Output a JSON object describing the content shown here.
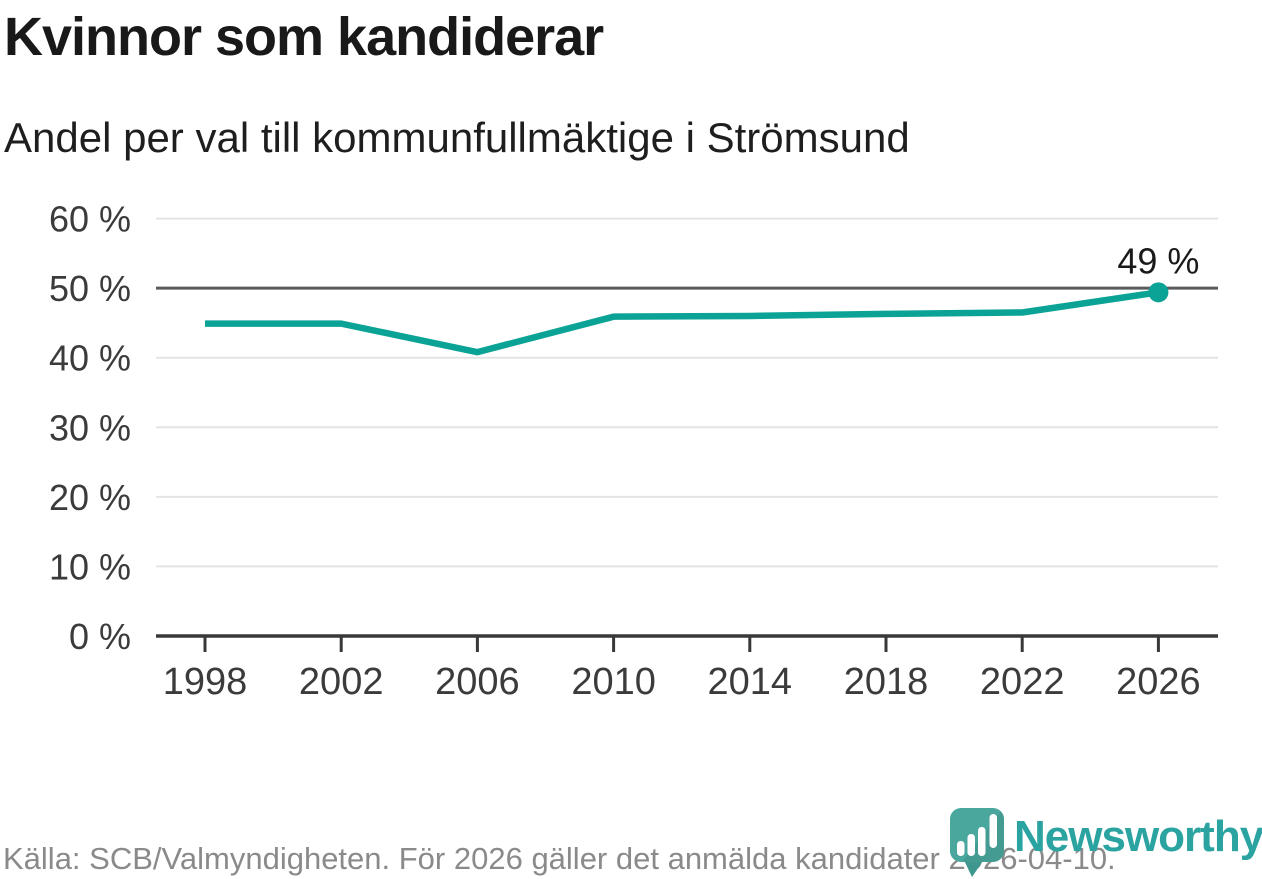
{
  "title": "Kvinnor som kandiderar",
  "subtitle": "Andel per val till kommunfullmäktige i Strömsund",
  "footer": {
    "source_text": "Källa: SCB/Valmyndigheten. För 2026 gäller det anmälda kandidater 2026-04-10."
  },
  "logo": {
    "icon_name": "newsworthy-speech-bubble-barchart-icon",
    "wordmark": "Newsworthy",
    "wordmark_color": "#2aa3a1",
    "icon_color": "#4aa79d",
    "icon_pointer_color": "#3d978e"
  },
  "colors": {
    "line": "#0aa396",
    "emphasis_gridline": "#5a5b5e",
    "gridline": "#e4e4e4",
    "axis": "#383838",
    "tick_text": "#3b3b3b",
    "annotation_text": "#1a1a1a"
  },
  "chart_data": {
    "type": "line",
    "x": [
      1998,
      2002,
      2006,
      2010,
      2014,
      2018,
      2022,
      2026
    ],
    "xtick_labels": [
      "1998",
      "2002",
      "2006",
      "2010",
      "2014",
      "2018",
      "2022",
      "2026"
    ],
    "series": [
      {
        "name": "andel-kvinnor",
        "values": [
          44.9,
          44.9,
          40.8,
          45.9,
          46.0,
          46.3,
          46.5,
          49.4
        ]
      }
    ],
    "ylim": [
      0,
      60
    ],
    "ytick_step": 10,
    "ytick_labels": [
      "0 %",
      "10 %",
      "20 %",
      "30 %",
      "40 %",
      "50 %",
      "60 %"
    ],
    "grid": true,
    "emphasized_gridline_value": 50,
    "legend": "none",
    "annotation": {
      "x": 2026,
      "label": "49 %"
    },
    "end_marker": true
  }
}
